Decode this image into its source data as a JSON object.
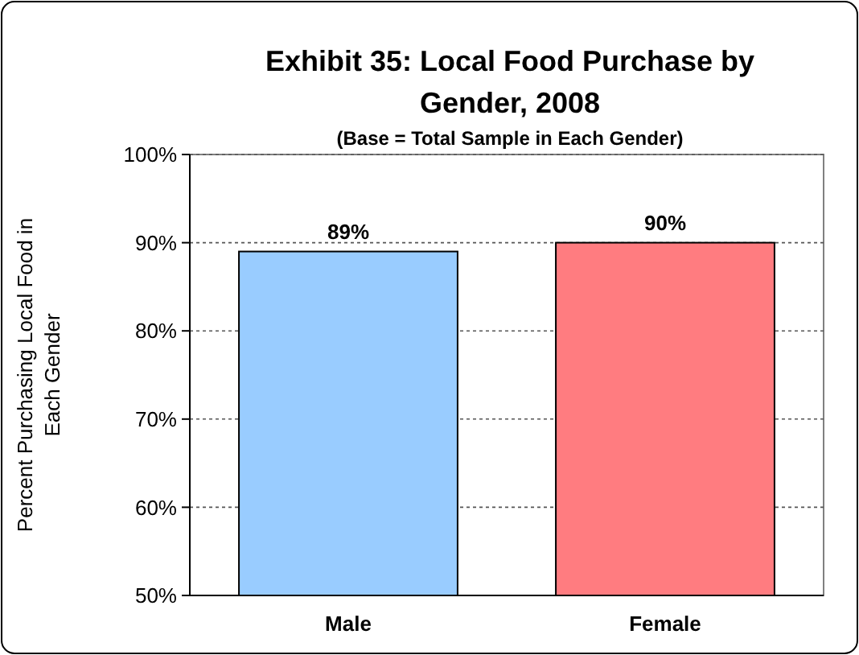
{
  "chart_data": {
    "type": "bar",
    "title": "Exhibit 35: Local Food Purchase by Gender, 2008",
    "subtitle": "(Base = Total Sample in Each Gender)",
    "ylabel": "Percent Purchasing Local Food in Each Gender",
    "categories": [
      "Male",
      "Female"
    ],
    "values": [
      89,
      90
    ],
    "colors": [
      "#99ccff",
      "#ff7c80"
    ],
    "value_labels": [
      "89%",
      "90%"
    ],
    "ylim": [
      50,
      100
    ],
    "yticks": [
      {
        "value": 50,
        "label": "50%"
      },
      {
        "value": 60,
        "label": "60%"
      },
      {
        "value": 70,
        "label": "70%"
      },
      {
        "value": 80,
        "label": "80%"
      },
      {
        "value": 90,
        "label": "90%"
      },
      {
        "value": 100,
        "label": "100%"
      }
    ],
    "grid": "y"
  }
}
